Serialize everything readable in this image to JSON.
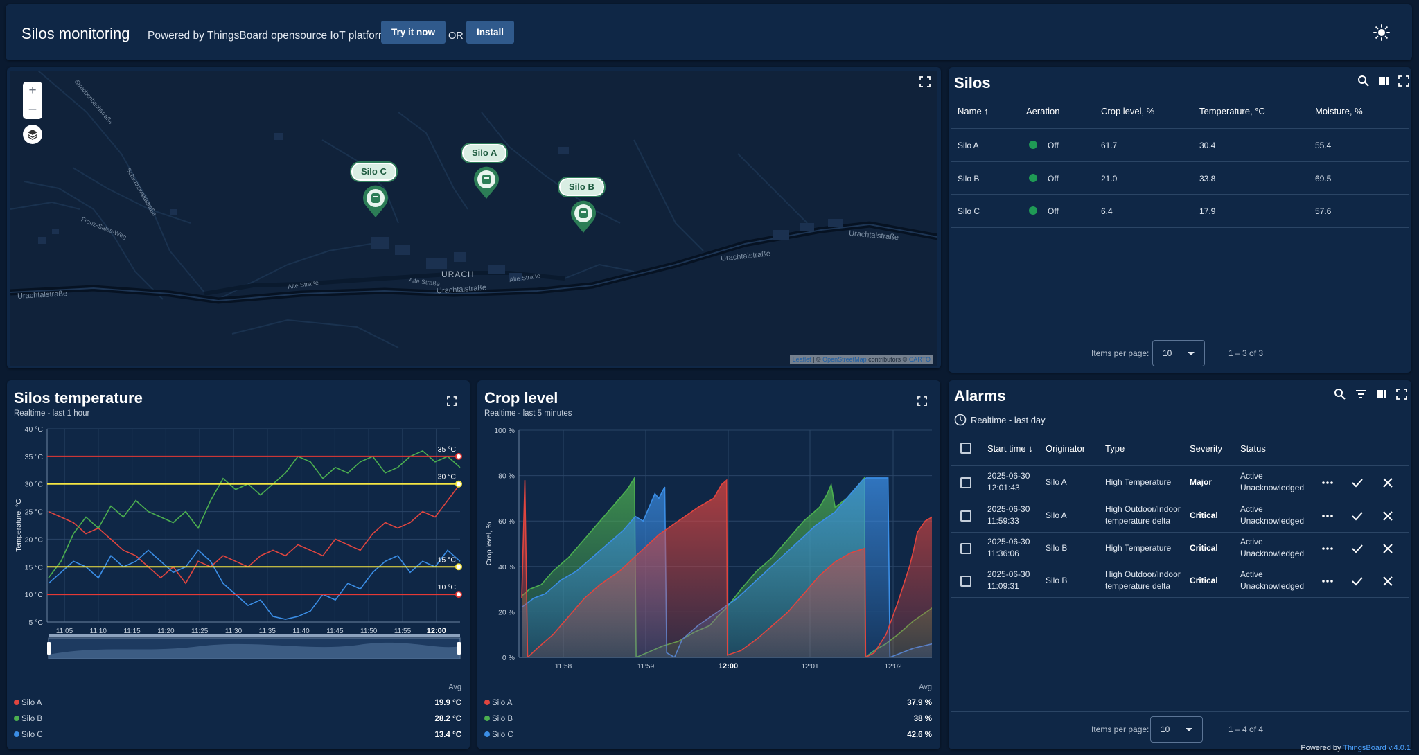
{
  "header": {
    "title": "Silos monitoring",
    "powered_text": "Powered by ThingsBoard opensource IoT platform.",
    "try_button": "Try it now",
    "or_text": "OR",
    "install_button": "Install"
  },
  "map": {
    "labels": [
      "Urachtalstraße",
      "Urachtalstraße",
      "Urachtalstraße",
      "Urachtalstraße",
      "Alte Straße",
      "Alte Straße",
      "Alte Straße",
      "Strechenbachstraße",
      "Schwarzwaldstraße",
      "Franz-Sales-Weg"
    ],
    "town": "URACH",
    "attribution_leaflet": "Leaflet",
    "attribution_osm": "OpenStreetMap",
    "attribution_contrib": "contributors ©",
    "attribution_carto": "CARTO",
    "markers": [
      "Silo A",
      "Silo B",
      "Silo C"
    ]
  },
  "silos": {
    "title": "Silos",
    "columns": [
      "Name",
      "Aeration",
      "Crop level, %",
      "Temperature, °C",
      "Moisture, %"
    ],
    "rows": [
      {
        "name": "Silo A",
        "aeration": "Off",
        "crop": "61.7",
        "temp": "30.4",
        "moisture": "55.4"
      },
      {
        "name": "Silo B",
        "aeration": "Off",
        "crop": "21.0",
        "temp": "33.8",
        "moisture": "69.5"
      },
      {
        "name": "Silo C",
        "aeration": "Off",
        "crop": "6.4",
        "temp": "17.9",
        "moisture": "57.6"
      }
    ],
    "items_per_page_label": "Items per page:",
    "items_per_page": "10",
    "range": "1 – 3 of 3",
    "status_color": "#1f9a55"
  },
  "temperature": {
    "title": "Silos temperature",
    "subtitle": "Realtime - last 1 hour",
    "avg_label": "Avg",
    "legend": [
      {
        "name": "Silo A",
        "value": "19.9 °C",
        "color": "#e0453f"
      },
      {
        "name": "Silo B",
        "value": "28.2 °C",
        "color": "#4caf50"
      },
      {
        "name": "Silo C",
        "value": "13.4 °C",
        "color": "#3b8ee6"
      }
    ]
  },
  "crop": {
    "title": "Crop level",
    "subtitle": "Realtime - last 5 minutes",
    "avg_label": "Avg",
    "legend": [
      {
        "name": "Silo A",
        "value": "37.9 %",
        "color": "#e0453f"
      },
      {
        "name": "Silo B",
        "value": "38 %",
        "color": "#4caf50"
      },
      {
        "name": "Silo C",
        "value": "42.6 %",
        "color": "#3b8ee6"
      }
    ]
  },
  "alarms": {
    "title": "Alarms",
    "timewindow": "Realtime - last day",
    "columns": [
      "Start time",
      "Originator",
      "Type",
      "Severity",
      "Status"
    ],
    "rows": [
      {
        "date": "2025-06-30",
        "time": "12:01:43",
        "originator": "Silo A",
        "type1": "High Temperature",
        "type2": "",
        "severity": "Major",
        "status1": "Active",
        "status2": "Unacknowledged"
      },
      {
        "date": "2025-06-30",
        "time": "11:59:33",
        "originator": "Silo A",
        "type1": "High Outdoor/Indoor",
        "type2": "temperature delta",
        "severity": "Critical",
        "status1": "Active",
        "status2": "Unacknowledged"
      },
      {
        "date": "2025-06-30",
        "time": "11:36:06",
        "originator": "Silo B",
        "type1": "High Temperature",
        "type2": "",
        "severity": "Critical",
        "status1": "Active",
        "status2": "Unacknowledged"
      },
      {
        "date": "2025-06-30",
        "time": "11:09:31",
        "originator": "Silo B",
        "type1": "High Outdoor/Indoor",
        "type2": "temperature delta",
        "severity": "Critical",
        "status1": "Active",
        "status2": "Unacknowledged"
      }
    ],
    "items_per_page_label": "Items per page:",
    "items_per_page": "10",
    "range": "1 – 4 of 4"
  },
  "footer": {
    "powered_by": "Powered by",
    "version": "ThingsBoard v.4.0.1"
  },
  "chart_data": [
    {
      "type": "line",
      "ylabel": "Temperature, °C",
      "ylim": [
        5,
        40
      ],
      "y_ticks": [
        "5 °C",
        "10 °C",
        "15 °C",
        "20 °C",
        "25 °C",
        "30 °C",
        "35 °C",
        "40 °C"
      ],
      "x_ticks": [
        "11:05",
        "11:10",
        "11:15",
        "11:20",
        "11:25",
        "11:30",
        "11:35",
        "11:40",
        "11:45",
        "11:50",
        "11:55",
        "12:00"
      ],
      "x_range": [
        "11:02",
        "12:02"
      ],
      "thresholds": [
        {
          "value": 35,
          "label": "35 °C",
          "color": "#e53935"
        },
        {
          "value": 30,
          "label": "30 °C",
          "color": "#f5e642"
        },
        {
          "value": 15,
          "label": "15 °C",
          "color": "#f5e642"
        },
        {
          "value": 10,
          "label": "10 °C",
          "color": "#e53935"
        }
      ],
      "series": [
        {
          "name": "Silo A",
          "color": "#e0453f",
          "values": [
            25,
            24,
            23,
            21,
            22,
            20,
            18,
            17,
            15,
            13,
            15,
            12,
            16,
            15,
            17,
            16,
            15,
            17,
            18,
            17,
            19,
            18,
            17,
            20,
            19,
            18,
            21,
            23,
            22,
            23,
            25,
            24,
            27,
            30
          ]
        },
        {
          "name": "Silo B",
          "color": "#4caf50",
          "values": [
            13,
            16,
            21,
            24,
            22,
            26,
            24,
            27,
            25,
            24,
            23,
            25,
            22,
            27,
            31,
            29,
            30,
            28,
            30,
            32,
            35,
            34,
            31,
            33,
            32,
            34,
            35,
            32,
            33,
            35,
            36,
            34,
            35,
            33
          ]
        },
        {
          "name": "Silo C",
          "color": "#3b8ee6",
          "values": [
            12,
            14,
            16,
            15,
            13,
            17,
            15,
            16,
            18,
            16,
            14,
            15,
            18,
            16,
            12,
            10,
            8,
            9,
            6,
            5.5,
            6,
            7,
            10,
            9,
            12,
            11,
            14,
            16,
            17,
            14,
            16,
            15,
            18,
            16
          ]
        }
      ]
    },
    {
      "type": "area",
      "ylabel": "Crop level, %",
      "ylim": [
        0,
        100
      ],
      "y_ticks": [
        "0 %",
        "20 %",
        "40 %",
        "60 %",
        "80 %",
        "100 %"
      ],
      "x_ticks": [
        "11:58",
        "11:59",
        "12:00",
        "12:01",
        "12:02"
      ],
      "x_range": [
        0,
        100
      ],
      "series": [
        {
          "name": "Silo A",
          "color": "#e0453f",
          "points": [
            [
              0,
              26
            ],
            [
              0.8,
              78
            ],
            [
              1.5,
              0
            ],
            [
              4,
              4
            ],
            [
              8,
              10
            ],
            [
              12,
              18
            ],
            [
              16,
              26
            ],
            [
              20,
              32
            ],
            [
              25,
              38
            ],
            [
              30,
              46
            ],
            [
              35,
              54
            ],
            [
              40,
              60
            ],
            [
              45,
              66
            ],
            [
              49,
              70
            ],
            [
              51,
              76
            ],
            [
              52.3,
              78
            ],
            [
              52.5,
              1
            ],
            [
              56,
              3
            ],
            [
              60,
              8
            ],
            [
              64,
              14
            ],
            [
              68,
              20
            ],
            [
              72,
              28
            ],
            [
              76,
              36
            ],
            [
              80,
              42
            ],
            [
              84,
              46
            ],
            [
              87.6,
              48
            ],
            [
              87.8,
              0
            ],
            [
              90,
              2
            ],
            [
              93,
              10
            ],
            [
              96,
              24
            ],
            [
              99,
              40
            ],
            [
              100,
              47
            ],
            [
              101,
              55
            ],
            [
              103,
              60
            ],
            [
              105,
              62
            ]
          ]
        },
        {
          "name": "Silo B",
          "color": "#4caf50",
          "points": [
            [
              0,
              27
            ],
            [
              2,
              30
            ],
            [
              5,
              32
            ],
            [
              8,
              38
            ],
            [
              12,
              44
            ],
            [
              16,
              52
            ],
            [
              20,
              60
            ],
            [
              24,
              68
            ],
            [
              27,
              74
            ],
            [
              28.8,
              79
            ],
            [
              29.2,
              0
            ],
            [
              32,
              2
            ],
            [
              36,
              5
            ],
            [
              40,
              7
            ],
            [
              44,
              11
            ],
            [
              48,
              14
            ],
            [
              50,
              18
            ],
            [
              52.4,
              22
            ],
            [
              56,
              30
            ],
            [
              60,
              38
            ],
            [
              64,
              44
            ],
            [
              68,
              52
            ],
            [
              72,
              60
            ],
            [
              76,
              66
            ],
            [
              78,
              72
            ],
            [
              79,
              76
            ],
            [
              80,
              66
            ],
            [
              83,
              70
            ],
            [
              87.5,
              79
            ],
            [
              87.7,
              0
            ],
            [
              90,
              3
            ],
            [
              93,
              6
            ],
            [
              96,
              10
            ],
            [
              100,
              16
            ],
            [
              105,
              22
            ]
          ]
        },
        {
          "name": "Silo C",
          "color": "#3b8ee6",
          "points": [
            [
              0,
              22
            ],
            [
              3,
              26
            ],
            [
              6,
              28
            ],
            [
              10,
              34
            ],
            [
              14,
              38
            ],
            [
              18,
              44
            ],
            [
              22,
              50
            ],
            [
              26,
              56
            ],
            [
              29,
              62
            ],
            [
              31,
              60
            ],
            [
              33,
              68
            ],
            [
              34,
              72
            ],
            [
              35,
              70
            ],
            [
              36.5,
              75
            ],
            [
              37,
              2
            ],
            [
              39,
              0
            ],
            [
              41,
              8
            ],
            [
              45,
              14
            ],
            [
              50,
              20
            ],
            [
              55,
              26
            ],
            [
              60,
              34
            ],
            [
              65,
              42
            ],
            [
              70,
              50
            ],
            [
              75,
              58
            ],
            [
              80,
              64
            ],
            [
              83,
              70
            ],
            [
              85,
              74
            ],
            [
              87,
              78
            ],
            [
              88,
              79
            ],
            [
              93.5,
              79
            ],
            [
              94,
              0
            ],
            [
              97,
              2
            ],
            [
              100,
              4
            ],
            [
              105,
              6
            ]
          ]
        }
      ]
    }
  ]
}
